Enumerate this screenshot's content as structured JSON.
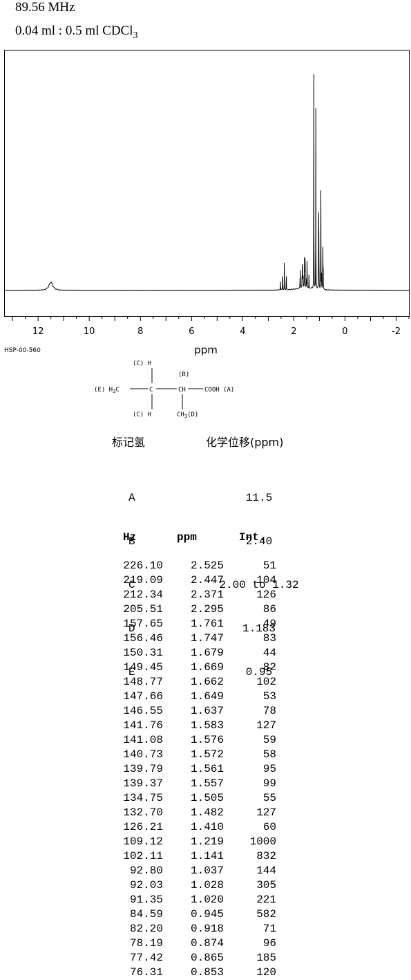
{
  "header": {
    "frequency": "89.56 MHz",
    "solvent_prefix": "0.04 ml : 0.5 ml CDCl",
    "solvent_sub": "3"
  },
  "code": "HSP-00-560",
  "structure": {
    "c_top": "(C) H",
    "c_bottom": "(C) H",
    "e_group": "(E) H",
    "e_sub": "3",
    "e_suffix": "C",
    "center_c": "C",
    "b_label": "(B)",
    "ch": "CH",
    "cooh": "COOH (A)",
    "ch3": "CH",
    "ch3_sub": "3",
    "ch3_label": "(D)"
  },
  "assignment": {
    "header_label": "标记氢",
    "header_shift": "化学位移(ppm)",
    "rows": [
      {
        "label": "A",
        "shift": "11.5"
      },
      {
        "label": "B",
        "shift": "2.40"
      },
      {
        "label": "C",
        "shift": "2.00 to 1.32"
      },
      {
        "label": "D",
        "shift": "1.183"
      },
      {
        "label": "E",
        "shift": "0.95"
      }
    ]
  },
  "peak_table": {
    "headers": {
      "hz": "Hz",
      "ppm": "ppm",
      "int": "Int."
    },
    "rows": [
      [
        "226.10",
        "2.525",
        "51"
      ],
      [
        "219.09",
        "2.447",
        "104"
      ],
      [
        "212.34",
        "2.371",
        "126"
      ],
      [
        "205.51",
        "2.295",
        "86"
      ],
      [
        "157.65",
        "1.761",
        "49"
      ],
      [
        "156.46",
        "1.747",
        "83"
      ],
      [
        "150.31",
        "1.679",
        "44"
      ],
      [
        "149.45",
        "1.669",
        "82"
      ],
      [
        "148.77",
        "1.662",
        "102"
      ],
      [
        "147.66",
        "1.649",
        "53"
      ],
      [
        "146.55",
        "1.637",
        "78"
      ],
      [
        "141.76",
        "1.583",
        "127"
      ],
      [
        "141.08",
        "1.576",
        "59"
      ],
      [
        "140.73",
        "1.572",
        "58"
      ],
      [
        "139.79",
        "1.561",
        "95"
      ],
      [
        "139.37",
        "1.557",
        "99"
      ],
      [
        "134.75",
        "1.505",
        "55"
      ],
      [
        "132.70",
        "1.482",
        "127"
      ],
      [
        "126.21",
        "1.410",
        "60"
      ],
      [
        "109.12",
        "1.219",
        "1000"
      ],
      [
        "102.11",
        "1.141",
        "832"
      ],
      [
        "92.80",
        "1.037",
        "144"
      ],
      [
        "92.03",
        "1.028",
        "305"
      ],
      [
        "91.35",
        "1.020",
        "221"
      ],
      [
        "84.59",
        "0.945",
        "582"
      ],
      [
        "82.20",
        "0.918",
        "71"
      ],
      [
        "78.19",
        "0.874",
        "96"
      ],
      [
        "77.42",
        "0.865",
        "185"
      ],
      [
        "76.31",
        "0.853",
        "120"
      ]
    ]
  },
  "chart_data": {
    "type": "line",
    "xlabel": "ppm",
    "xlim": [
      13.3,
      -2.5
    ],
    "ylim": [
      0,
      1000
    ],
    "ticks": [
      12,
      10,
      8,
      6,
      4,
      2,
      0,
      -2
    ],
    "tick_labels": [
      "12",
      "10",
      "8",
      "6",
      "4",
      "2",
      "0",
      "-2"
    ],
    "broad_peaks": [
      {
        "ppm": 11.5,
        "intensity": 38
      }
    ],
    "peaks": [
      {
        "ppm": 2.525,
        "intensity": 51
      },
      {
        "ppm": 2.447,
        "intensity": 104
      },
      {
        "ppm": 2.371,
        "intensity": 126
      },
      {
        "ppm": 2.295,
        "intensity": 86
      },
      {
        "ppm": 1.761,
        "intensity": 49
      },
      {
        "ppm": 1.747,
        "intensity": 83
      },
      {
        "ppm": 1.679,
        "intensity": 44
      },
      {
        "ppm": 1.669,
        "intensity": 82
      },
      {
        "ppm": 1.662,
        "intensity": 102
      },
      {
        "ppm": 1.649,
        "intensity": 53
      },
      {
        "ppm": 1.637,
        "intensity": 78
      },
      {
        "ppm": 1.583,
        "intensity": 127
      },
      {
        "ppm": 1.576,
        "intensity": 59
      },
      {
        "ppm": 1.572,
        "intensity": 58
      },
      {
        "ppm": 1.561,
        "intensity": 95
      },
      {
        "ppm": 1.557,
        "intensity": 99
      },
      {
        "ppm": 1.505,
        "intensity": 55
      },
      {
        "ppm": 1.482,
        "intensity": 127
      },
      {
        "ppm": 1.41,
        "intensity": 60
      },
      {
        "ppm": 1.219,
        "intensity": 1000
      },
      {
        "ppm": 1.141,
        "intensity": 832
      },
      {
        "ppm": 1.037,
        "intensity": 144
      },
      {
        "ppm": 1.028,
        "intensity": 305
      },
      {
        "ppm": 1.02,
        "intensity": 221
      },
      {
        "ppm": 0.945,
        "intensity": 582
      },
      {
        "ppm": 0.918,
        "intensity": 71
      },
      {
        "ppm": 0.874,
        "intensity": 96
      },
      {
        "ppm": 0.865,
        "intensity": 185
      },
      {
        "ppm": 0.853,
        "intensity": 120
      }
    ]
  }
}
